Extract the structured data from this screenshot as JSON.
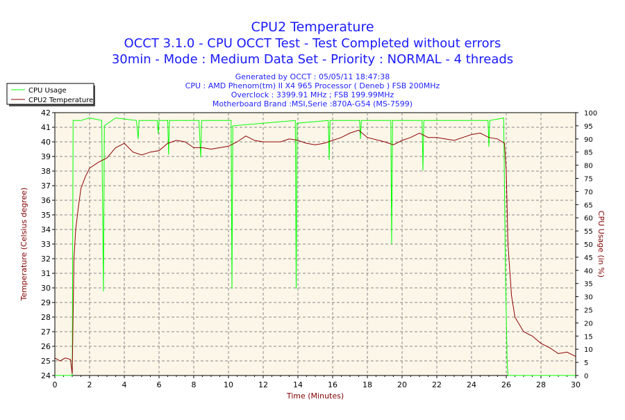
{
  "chart_data": {
    "type": "line",
    "title": "CPU2 Temperature",
    "subtitle_lines": [
      "OCCT 3.1.0 - CPU OCCT Test - Test Completed without errors",
      "30min - Mode : Medium Data Set - Priority : NORMAL - 4 threads"
    ],
    "info_lines": [
      "Generated by OCCT : 05/05/11 18:47:38",
      "CPU : AMD Phenom(tm) II X4 965 Processor ( Deneb ) FSB 200MHz",
      "Overclock : 3399.91 MHz ; FSB 199.99MHz",
      "Motherboard Brand :MSI,Serie :870A-G54 (MS-7599)"
    ],
    "xlabel": "Time (Minutes)",
    "ylabel": "Temperature (Celsius degree)",
    "y2label": "CPU Usage (in %)",
    "xlim": [
      0,
      30
    ],
    "ylim": [
      24,
      42
    ],
    "y2lim": [
      0,
      100
    ],
    "xticks": [
      0,
      2,
      4,
      6,
      8,
      10,
      12,
      14,
      16,
      18,
      20,
      22,
      24,
      26,
      28,
      30
    ],
    "yticks": [
      24,
      25,
      26,
      27,
      28,
      29,
      30,
      31,
      32,
      33,
      34,
      35,
      36,
      37,
      38,
      39,
      40,
      41,
      42
    ],
    "y2ticks": [
      0,
      5,
      10,
      15,
      20,
      25,
      30,
      35,
      40,
      45,
      50,
      55,
      60,
      65,
      70,
      75,
      80,
      85,
      90,
      95,
      100
    ],
    "grid": true,
    "legend_position": "top-left",
    "colors": {
      "title": "#1a1aff",
      "axis_label": "#800000",
      "plot_bg": "#fcf6e8",
      "usage": "#00ff00",
      "temperature": "#8b0000"
    },
    "series": [
      {
        "name": "CPU Usage",
        "axis": "right",
        "color": "#00ff00",
        "points": [
          [
            0,
            0
          ],
          [
            1.0,
            0
          ],
          [
            1.05,
            97
          ],
          [
            1.5,
            97
          ],
          [
            2,
            98
          ],
          [
            2.7,
            97
          ],
          [
            2.8,
            32
          ],
          [
            2.85,
            95
          ],
          [
            3.5,
            98
          ],
          [
            4.7,
            97
          ],
          [
            4.8,
            90
          ],
          [
            4.85,
            97
          ],
          [
            5.9,
            97
          ],
          [
            5.95,
            92
          ],
          [
            6.0,
            97
          ],
          [
            6.5,
            97
          ],
          [
            6.55,
            84
          ],
          [
            6.6,
            97
          ],
          [
            8.3,
            97
          ],
          [
            8.4,
            83
          ],
          [
            8.45,
            97
          ],
          [
            10.15,
            97
          ],
          [
            10.2,
            33
          ],
          [
            10.25,
            95
          ],
          [
            13.85,
            97
          ],
          [
            13.9,
            33
          ],
          [
            13.95,
            96
          ],
          [
            15.75,
            97
          ],
          [
            15.8,
            82
          ],
          [
            15.85,
            97
          ],
          [
            17.55,
            97
          ],
          [
            17.6,
            90
          ],
          [
            17.65,
            97
          ],
          [
            19.35,
            97
          ],
          [
            19.4,
            50
          ],
          [
            19.45,
            97
          ],
          [
            21.15,
            97
          ],
          [
            21.2,
            78
          ],
          [
            21.25,
            97
          ],
          [
            24.95,
            97
          ],
          [
            25.0,
            87
          ],
          [
            25.05,
            97
          ],
          [
            25.85,
            98
          ],
          [
            25.95,
            40
          ],
          [
            26.05,
            5
          ],
          [
            26.1,
            0
          ],
          [
            30,
            0
          ]
        ]
      },
      {
        "name": "CPU2 Temperature",
        "axis": "left",
        "color": "#8b0000",
        "points": [
          [
            0,
            25.2
          ],
          [
            0.3,
            25.0
          ],
          [
            0.6,
            25.2
          ],
          [
            0.9,
            25.1
          ],
          [
            1.0,
            24.1
          ],
          [
            1.1,
            32
          ],
          [
            1.2,
            34
          ],
          [
            1.35,
            35.5
          ],
          [
            1.5,
            36.8
          ],
          [
            1.75,
            37.6
          ],
          [
            2,
            38.2
          ],
          [
            2.5,
            38.6
          ],
          [
            3,
            38.9
          ],
          [
            3.5,
            39.6
          ],
          [
            4,
            39.9
          ],
          [
            4.5,
            39.3
          ],
          [
            5,
            39.1
          ],
          [
            5.5,
            39.3
          ],
          [
            6,
            39.4
          ],
          [
            6.5,
            39.9
          ],
          [
            7,
            40.1
          ],
          [
            7.5,
            40.0
          ],
          [
            8,
            39.6
          ],
          [
            8.5,
            39.6
          ],
          [
            9,
            39.5
          ],
          [
            9.5,
            39.6
          ],
          [
            10,
            39.7
          ],
          [
            10.5,
            40.0
          ],
          [
            11,
            40.4
          ],
          [
            11.5,
            40.1
          ],
          [
            12,
            40.0
          ],
          [
            13,
            40.0
          ],
          [
            13.5,
            40.2
          ],
          [
            14,
            40.1
          ],
          [
            14.5,
            39.9
          ],
          [
            15,
            39.8
          ],
          [
            15.5,
            39.9
          ],
          [
            16,
            40.1
          ],
          [
            16.5,
            40.3
          ],
          [
            17,
            40.6
          ],
          [
            17.5,
            40.8
          ],
          [
            18,
            40.3
          ],
          [
            19,
            40.0
          ],
          [
            19.5,
            39.8
          ],
          [
            20,
            40.1
          ],
          [
            20.5,
            40.3
          ],
          [
            21,
            40.6
          ],
          [
            21.5,
            40.3
          ],
          [
            22,
            40.3
          ],
          [
            23,
            40.1
          ],
          [
            23.5,
            40.3
          ],
          [
            24,
            40.5
          ],
          [
            24.5,
            40.6
          ],
          [
            25,
            40.3
          ],
          [
            25.5,
            40.2
          ],
          [
            25.9,
            39.9
          ],
          [
            26.0,
            38
          ],
          [
            26.1,
            33
          ],
          [
            26.3,
            29.5
          ],
          [
            26.5,
            28
          ],
          [
            27,
            27.0
          ],
          [
            27.5,
            26.7
          ],
          [
            28,
            26.2
          ],
          [
            28.5,
            25.9
          ],
          [
            29,
            25.5
          ],
          [
            29.5,
            25.6
          ],
          [
            30,
            25.3
          ]
        ]
      }
    ]
  }
}
